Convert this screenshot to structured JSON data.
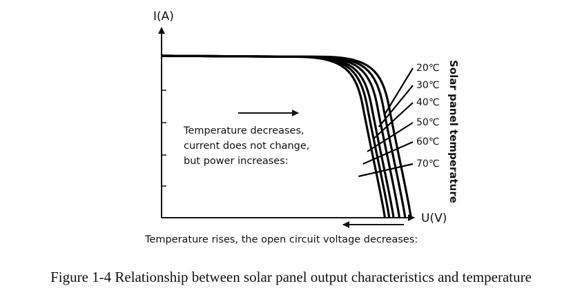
{
  "chart_data": {
    "type": "line",
    "title": "",
    "xlabel": "U(V)",
    "ylabel": "I(A)",
    "legend_title": "Solar panel temperature",
    "grid": false,
    "series": [
      {
        "name": "20℃",
        "open_circuit_voltage": 0.86
      },
      {
        "name": "30℃",
        "open_circuit_voltage": 0.84
      },
      {
        "name": "40℃",
        "open_circuit_voltage": 0.82
      },
      {
        "name": "50℃",
        "open_circuit_voltage": 0.8
      },
      {
        "name": "60℃",
        "open_circuit_voltage": 0.785
      },
      {
        "name": "70℃",
        "open_circuit_voltage": 0.77
      }
    ],
    "short_circuit_current": 1.0,
    "annotations": {
      "current_note": [
        "Temperature decreases,",
        "current does not change,",
        "but power increases:"
      ],
      "voltage_note": "Temperature rises, the open circuit voltage decreases:"
    }
  },
  "caption": "Figure 1-4 Relationship between solar panel output characteristics and temperature"
}
